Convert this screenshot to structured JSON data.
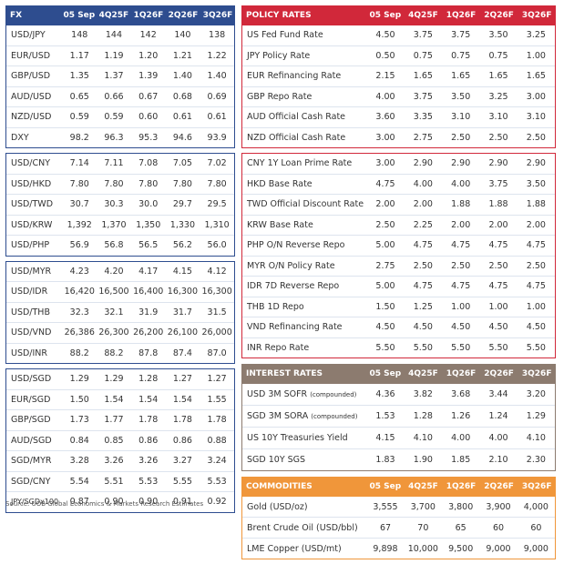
{
  "fx": {
    "header": [
      "FX",
      "05 Sep",
      "4Q25F",
      "1Q26F",
      "2Q26F",
      "3Q26F"
    ],
    "groups": [
      [
        [
          "USD/JPY",
          "148",
          "144",
          "142",
          "140",
          "138"
        ],
        [
          "EUR/USD",
          "1.17",
          "1.19",
          "1.20",
          "1.21",
          "1.22"
        ],
        [
          "GBP/USD",
          "1.35",
          "1.37",
          "1.39",
          "1.40",
          "1.40"
        ],
        [
          "AUD/USD",
          "0.65",
          "0.66",
          "0.67",
          "0.68",
          "0.69"
        ],
        [
          "NZD/USD",
          "0.59",
          "0.59",
          "0.60",
          "0.61",
          "0.61"
        ],
        [
          "DXY",
          "98.2",
          "96.3",
          "95.3",
          "94.6",
          "93.9"
        ]
      ],
      [
        [
          "USD/CNY",
          "7.14",
          "7.11",
          "7.08",
          "7.05",
          "7.02"
        ],
        [
          "USD/HKD",
          "7.80",
          "7.80",
          "7.80",
          "7.80",
          "7.80"
        ],
        [
          "USD/TWD",
          "30.7",
          "30.3",
          "30.0",
          "29.7",
          "29.5"
        ],
        [
          "USD/KRW",
          "1,392",
          "1,370",
          "1,350",
          "1,330",
          "1,310"
        ],
        [
          "USD/PHP",
          "56.9",
          "56.8",
          "56.5",
          "56.2",
          "56.0"
        ]
      ],
      [
        [
          "USD/MYR",
          "4.23",
          "4.20",
          "4.17",
          "4.15",
          "4.12"
        ],
        [
          "USD/IDR",
          "16,420",
          "16,500",
          "16,400",
          "16,300",
          "16,300"
        ],
        [
          "USD/THB",
          "32.3",
          "32.1",
          "31.9",
          "31.7",
          "31.5"
        ],
        [
          "USD/VND",
          "26,386",
          "26,300",
          "26,200",
          "26,100",
          "26,000"
        ],
        [
          "USD/INR",
          "88.2",
          "88.2",
          "87.8",
          "87.4",
          "87.0"
        ]
      ],
      [
        [
          "USD/SGD",
          "1.29",
          "1.29",
          "1.28",
          "1.27",
          "1.27"
        ],
        [
          "EUR/SGD",
          "1.50",
          "1.54",
          "1.54",
          "1.54",
          "1.55"
        ],
        [
          "GBP/SGD",
          "1.73",
          "1.77",
          "1.78",
          "1.78",
          "1.78"
        ],
        [
          "AUD/SGD",
          "0.84",
          "0.85",
          "0.86",
          "0.86",
          "0.88"
        ],
        [
          "SGD/MYR",
          "3.28",
          "3.26",
          "3.26",
          "3.27",
          "3.24"
        ],
        [
          "SGD/CNY",
          "5.54",
          "5.51",
          "5.53",
          "5.55",
          "5.53"
        ],
        [
          "JPY/SGDx100",
          "0.87",
          "0.90",
          "0.90",
          "0.91",
          "0.92"
        ]
      ]
    ]
  },
  "policy": {
    "header": [
      "POLICY RATES",
      "05 Sep",
      "4Q25F",
      "1Q26F",
      "2Q26F",
      "3Q26F"
    ],
    "groups": [
      [
        [
          "US Fed Fund Rate",
          "4.50",
          "3.75",
          "3.75",
          "3.50",
          "3.25"
        ],
        [
          "JPY Policy Rate",
          "0.50",
          "0.75",
          "0.75",
          "0.75",
          "1.00"
        ],
        [
          "EUR Refinancing Rate",
          "2.15",
          "1.65",
          "1.65",
          "1.65",
          "1.65"
        ],
        [
          "GBP Repo Rate",
          "4.00",
          "3.75",
          "3.50",
          "3.25",
          "3.00"
        ],
        [
          "AUD Official Cash Rate",
          "3.60",
          "3.35",
          "3.10",
          "3.10",
          "3.10"
        ],
        [
          "NZD Official Cash Rate",
          "3.00",
          "2.75",
          "2.50",
          "2.50",
          "2.50"
        ]
      ],
      [
        [
          "CNY 1Y Loan Prime Rate",
          "3.00",
          "2.90",
          "2.90",
          "2.90",
          "2.90"
        ],
        [
          "HKD Base Rate",
          "4.75",
          "4.00",
          "4.00",
          "3.75",
          "3.50"
        ],
        [
          "TWD Official Discount Rate",
          "2.00",
          "2.00",
          "1.88",
          "1.88",
          "1.88"
        ],
        [
          "KRW Base Rate",
          "2.50",
          "2.25",
          "2.00",
          "2.00",
          "2.00"
        ],
        [
          "PHP O/N Reverse Repo",
          "5.00",
          "4.75",
          "4.75",
          "4.75",
          "4.75"
        ],
        [
          "MYR O/N Policy Rate",
          "2.75",
          "2.50",
          "2.50",
          "2.50",
          "2.50"
        ],
        [
          "IDR 7D Reverse Repo",
          "5.00",
          "4.75",
          "4.75",
          "4.75",
          "4.75"
        ],
        [
          "THB 1D Repo",
          "1.50",
          "1.25",
          "1.00",
          "1.00",
          "1.00"
        ],
        [
          "VND Refinancing Rate",
          "4.50",
          "4.50",
          "4.50",
          "4.50",
          "4.50"
        ],
        [
          "INR Repo Rate",
          "5.50",
          "5.50",
          "5.50",
          "5.50",
          "5.50"
        ]
      ]
    ]
  },
  "interest": {
    "header": [
      "INTEREST RATES",
      "05 Sep",
      "4Q25F",
      "1Q26F",
      "2Q26F",
      "3Q26F"
    ],
    "rows": [
      [
        "USD 3M SOFR",
        "(compounded)",
        "4.36",
        "3.82",
        "3.68",
        "3.44",
        "3.20"
      ],
      [
        "SGD 3M SORA",
        "(compounded)",
        "1.53",
        "1.28",
        "1.26",
        "1.24",
        "1.29"
      ],
      [
        "US 10Y Treasuries Yield",
        "",
        "4.15",
        "4.10",
        "4.00",
        "4.00",
        "4.10"
      ],
      [
        "SGD 10Y SGS",
        "",
        "1.83",
        "1.90",
        "1.85",
        "2.10",
        "2.30"
      ]
    ]
  },
  "commodities": {
    "header": [
      "COMMODITIES",
      "05 Sep",
      "4Q25F",
      "1Q26F",
      "2Q26F",
      "3Q26F"
    ],
    "rows": [
      [
        "Gold (USD/oz)",
        "3,555",
        "3,700",
        "3,800",
        "3,900",
        "4,000"
      ],
      [
        "Brent Crude Oil (USD/bbl)",
        "67",
        "70",
        "65",
        "60",
        "60"
      ],
      [
        "LME Copper (USD/mt)",
        "9,898",
        "10,000",
        "9,500",
        "9,000",
        "9,000"
      ]
    ]
  },
  "source": "Source: UOB Global Economics & Markets Research Estimates",
  "colors": {
    "fx": "#2e4d8f",
    "policy": "#d1283a",
    "interest": "#8c7b6f",
    "commodities": "#f0963a"
  }
}
